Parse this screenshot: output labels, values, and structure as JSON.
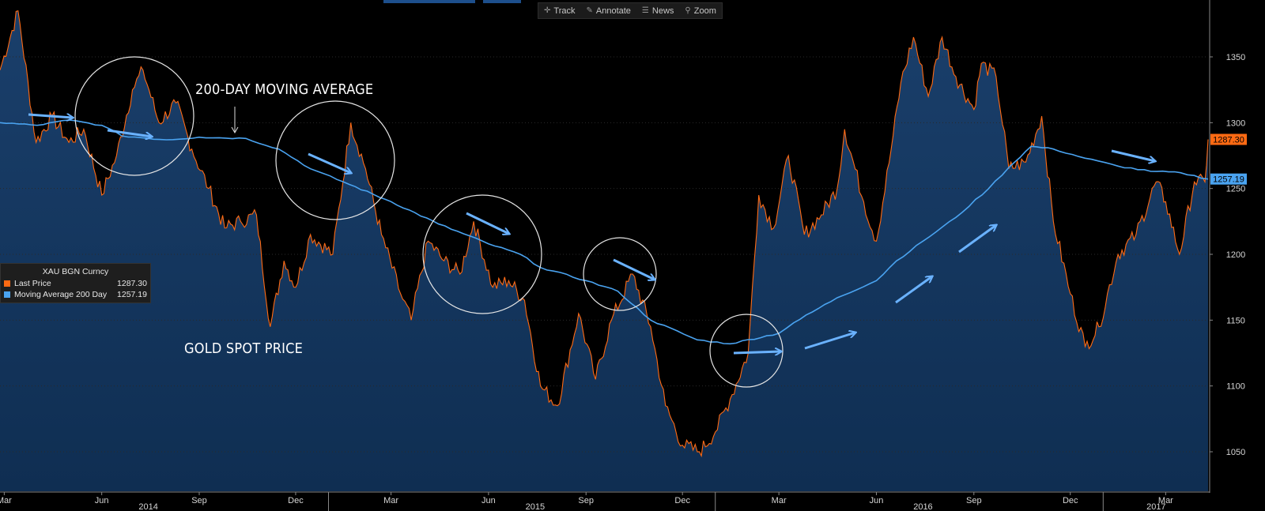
{
  "toolbar": {
    "track_label": "Track",
    "annotate_label": "Annotate",
    "news_label": "News",
    "zoom_label": "Zoom"
  },
  "legend": {
    "title": "XAU BGN Curncy",
    "rows": [
      {
        "name": "Last Price",
        "value": "1287.30",
        "color": "#ff6a13"
      },
      {
        "name": "Moving Average 200 Day",
        "value": "1257.19",
        "color": "#4aa3f0"
      }
    ]
  },
  "annotations": {
    "ma_label": "200-DAY MOVING AVERAGE",
    "price_label": "GOLD SPOT PRICE"
  },
  "colors": {
    "background": "#000000",
    "price_line": "#ff6a13",
    "ma_line": "#4aa3f0",
    "area_fill": "#0f2e52",
    "arrow": "#6ab2ff",
    "circle": "#e6e6e6",
    "last_price_box": "#ff6a13",
    "ma_box": "#4aa3f0"
  },
  "chart_data": {
    "type": "line",
    "title": "",
    "ylim": [
      1020,
      1380
    ],
    "y_ticks": [
      1050,
      1100,
      1150,
      1200,
      1250,
      1300,
      1350
    ],
    "xlim": [
      "2014-02-25",
      "2017-04-10"
    ],
    "x_ticks": [
      {
        "date": "2014-03-01",
        "label": "Mar"
      },
      {
        "date": "2014-06-01",
        "label": "Jun"
      },
      {
        "date": "2014-09-01",
        "label": "Sep"
      },
      {
        "date": "2014-12-01",
        "label": "Dec"
      },
      {
        "date": "2015-03-01",
        "label": "Mar"
      },
      {
        "date": "2015-06-01",
        "label": "Jun"
      },
      {
        "date": "2015-09-01",
        "label": "Sep"
      },
      {
        "date": "2015-12-01",
        "label": "Dec"
      },
      {
        "date": "2016-03-01",
        "label": "Mar"
      },
      {
        "date": "2016-06-01",
        "label": "Jun"
      },
      {
        "date": "2016-09-01",
        "label": "Sep"
      },
      {
        "date": "2016-12-01",
        "label": "Dec"
      },
      {
        "date": "2017-03-01",
        "label": "Mar"
      }
    ],
    "year_labels": [
      {
        "date": "2014-07-15",
        "label": "2014"
      },
      {
        "date": "2015-07-15",
        "label": "2015"
      },
      {
        "date": "2016-07-15",
        "label": "2016"
      },
      {
        "date": "2017-02-20",
        "label": "2017"
      }
    ],
    "year_separators": [
      "2015-01-01",
      "2016-01-01",
      "2017-01-01"
    ],
    "last_values": {
      "price": "1287.30",
      "ma": "1257.19"
    },
    "series": [
      {
        "name": "Last Price",
        "points": [
          [
            "2014-02-25",
            1340
          ],
          [
            "2014-03-14",
            1385
          ],
          [
            "2014-03-31",
            1285
          ],
          [
            "2014-04-15",
            1305
          ],
          [
            "2014-05-01",
            1285
          ],
          [
            "2014-05-15",
            1295
          ],
          [
            "2014-06-01",
            1245
          ],
          [
            "2014-06-15",
            1275
          ],
          [
            "2014-06-30",
            1325
          ],
          [
            "2014-07-10",
            1340
          ],
          [
            "2014-07-25",
            1300
          ],
          [
            "2014-08-10",
            1315
          ],
          [
            "2014-08-25",
            1280
          ],
          [
            "2014-09-10",
            1250
          ],
          [
            "2014-09-25",
            1220
          ],
          [
            "2014-10-10",
            1225
          ],
          [
            "2014-10-25",
            1230
          ],
          [
            "2014-11-07",
            1145
          ],
          [
            "2014-11-20",
            1195
          ],
          [
            "2014-12-01",
            1175
          ],
          [
            "2014-12-15",
            1215
          ],
          [
            "2015-01-05",
            1200
          ],
          [
            "2015-01-22",
            1300
          ],
          [
            "2015-02-05",
            1265
          ],
          [
            "2015-02-20",
            1215
          ],
          [
            "2015-03-10",
            1170
          ],
          [
            "2015-03-20",
            1150
          ],
          [
            "2015-04-05",
            1210
          ],
          [
            "2015-04-20",
            1195
          ],
          [
            "2015-05-05",
            1185
          ],
          [
            "2015-05-18",
            1225
          ],
          [
            "2015-06-05",
            1175
          ],
          [
            "2015-06-20",
            1180
          ],
          [
            "2015-07-05",
            1165
          ],
          [
            "2015-07-20",
            1100
          ],
          [
            "2015-08-05",
            1085
          ],
          [
            "2015-08-25",
            1155
          ],
          [
            "2015-09-10",
            1105
          ],
          [
            "2015-09-25",
            1150
          ],
          [
            "2015-10-15",
            1185
          ],
          [
            "2015-11-01",
            1145
          ],
          [
            "2015-11-15",
            1085
          ],
          [
            "2015-12-01",
            1055
          ],
          [
            "2015-12-17",
            1050
          ],
          [
            "2016-01-01",
            1065
          ],
          [
            "2016-01-15",
            1090
          ],
          [
            "2016-02-01",
            1125
          ],
          [
            "2016-02-11",
            1245
          ],
          [
            "2016-02-25",
            1220
          ],
          [
            "2016-03-10",
            1275
          ],
          [
            "2016-03-25",
            1215
          ],
          [
            "2016-04-10",
            1230
          ],
          [
            "2016-04-25",
            1250
          ],
          [
            "2016-05-02",
            1295
          ],
          [
            "2016-05-20",
            1240
          ],
          [
            "2016-06-01",
            1210
          ],
          [
            "2016-06-15",
            1280
          ],
          [
            "2016-06-24",
            1330
          ],
          [
            "2016-07-06",
            1365
          ],
          [
            "2016-07-20",
            1320
          ],
          [
            "2016-08-02",
            1365
          ],
          [
            "2016-08-15",
            1335
          ],
          [
            "2016-09-01",
            1310
          ],
          [
            "2016-09-08",
            1345
          ],
          [
            "2016-09-22",
            1335
          ],
          [
            "2016-10-04",
            1265
          ],
          [
            "2016-10-20",
            1270
          ],
          [
            "2016-11-04",
            1305
          ],
          [
            "2016-11-15",
            1225
          ],
          [
            "2016-12-01",
            1170
          ],
          [
            "2016-12-15",
            1130
          ],
          [
            "2016-12-28",
            1145
          ],
          [
            "2017-01-15",
            1200
          ],
          [
            "2017-02-01",
            1215
          ],
          [
            "2017-02-20",
            1255
          ],
          [
            "2017-03-01",
            1240
          ],
          [
            "2017-03-14",
            1200
          ],
          [
            "2017-03-28",
            1255
          ],
          [
            "2017-04-07",
            1255
          ],
          [
            "2017-04-10",
            1287.3
          ]
        ]
      },
      {
        "name": "Moving Average 200 Day",
        "points": [
          [
            "2014-02-25",
            1300
          ],
          [
            "2014-04-01",
            1298
          ],
          [
            "2014-05-01",
            1302
          ],
          [
            "2014-06-01",
            1298
          ],
          [
            "2014-06-20",
            1290
          ],
          [
            "2014-08-01",
            1287
          ],
          [
            "2014-09-01",
            1289
          ],
          [
            "2014-10-15",
            1288
          ],
          [
            "2014-11-15",
            1280
          ],
          [
            "2014-12-15",
            1265
          ],
          [
            "2015-01-15",
            1255
          ],
          [
            "2015-03-01",
            1240
          ],
          [
            "2015-04-15",
            1223
          ],
          [
            "2015-06-01",
            1208
          ],
          [
            "2015-07-01",
            1200
          ],
          [
            "2015-07-20",
            1190
          ],
          [
            "2015-09-01",
            1180
          ],
          [
            "2015-10-01",
            1172
          ],
          [
            "2015-11-01",
            1150
          ],
          [
            "2015-12-15",
            1135
          ],
          [
            "2016-01-15",
            1132
          ],
          [
            "2016-03-01",
            1140
          ],
          [
            "2016-03-15",
            1148
          ],
          [
            "2016-04-25",
            1167
          ],
          [
            "2016-06-01",
            1180
          ],
          [
            "2016-06-20",
            1195
          ],
          [
            "2016-07-15",
            1210
          ],
          [
            "2016-08-15",
            1228
          ],
          [
            "2016-09-15",
            1250
          ],
          [
            "2016-10-04",
            1266
          ],
          [
            "2016-10-25",
            1282
          ],
          [
            "2016-11-15",
            1280
          ],
          [
            "2016-12-15",
            1273
          ],
          [
            "2017-01-15",
            1267
          ],
          [
            "2017-02-15",
            1263
          ],
          [
            "2017-03-15",
            1262
          ],
          [
            "2017-04-10",
            1257.19
          ]
        ]
      }
    ]
  }
}
